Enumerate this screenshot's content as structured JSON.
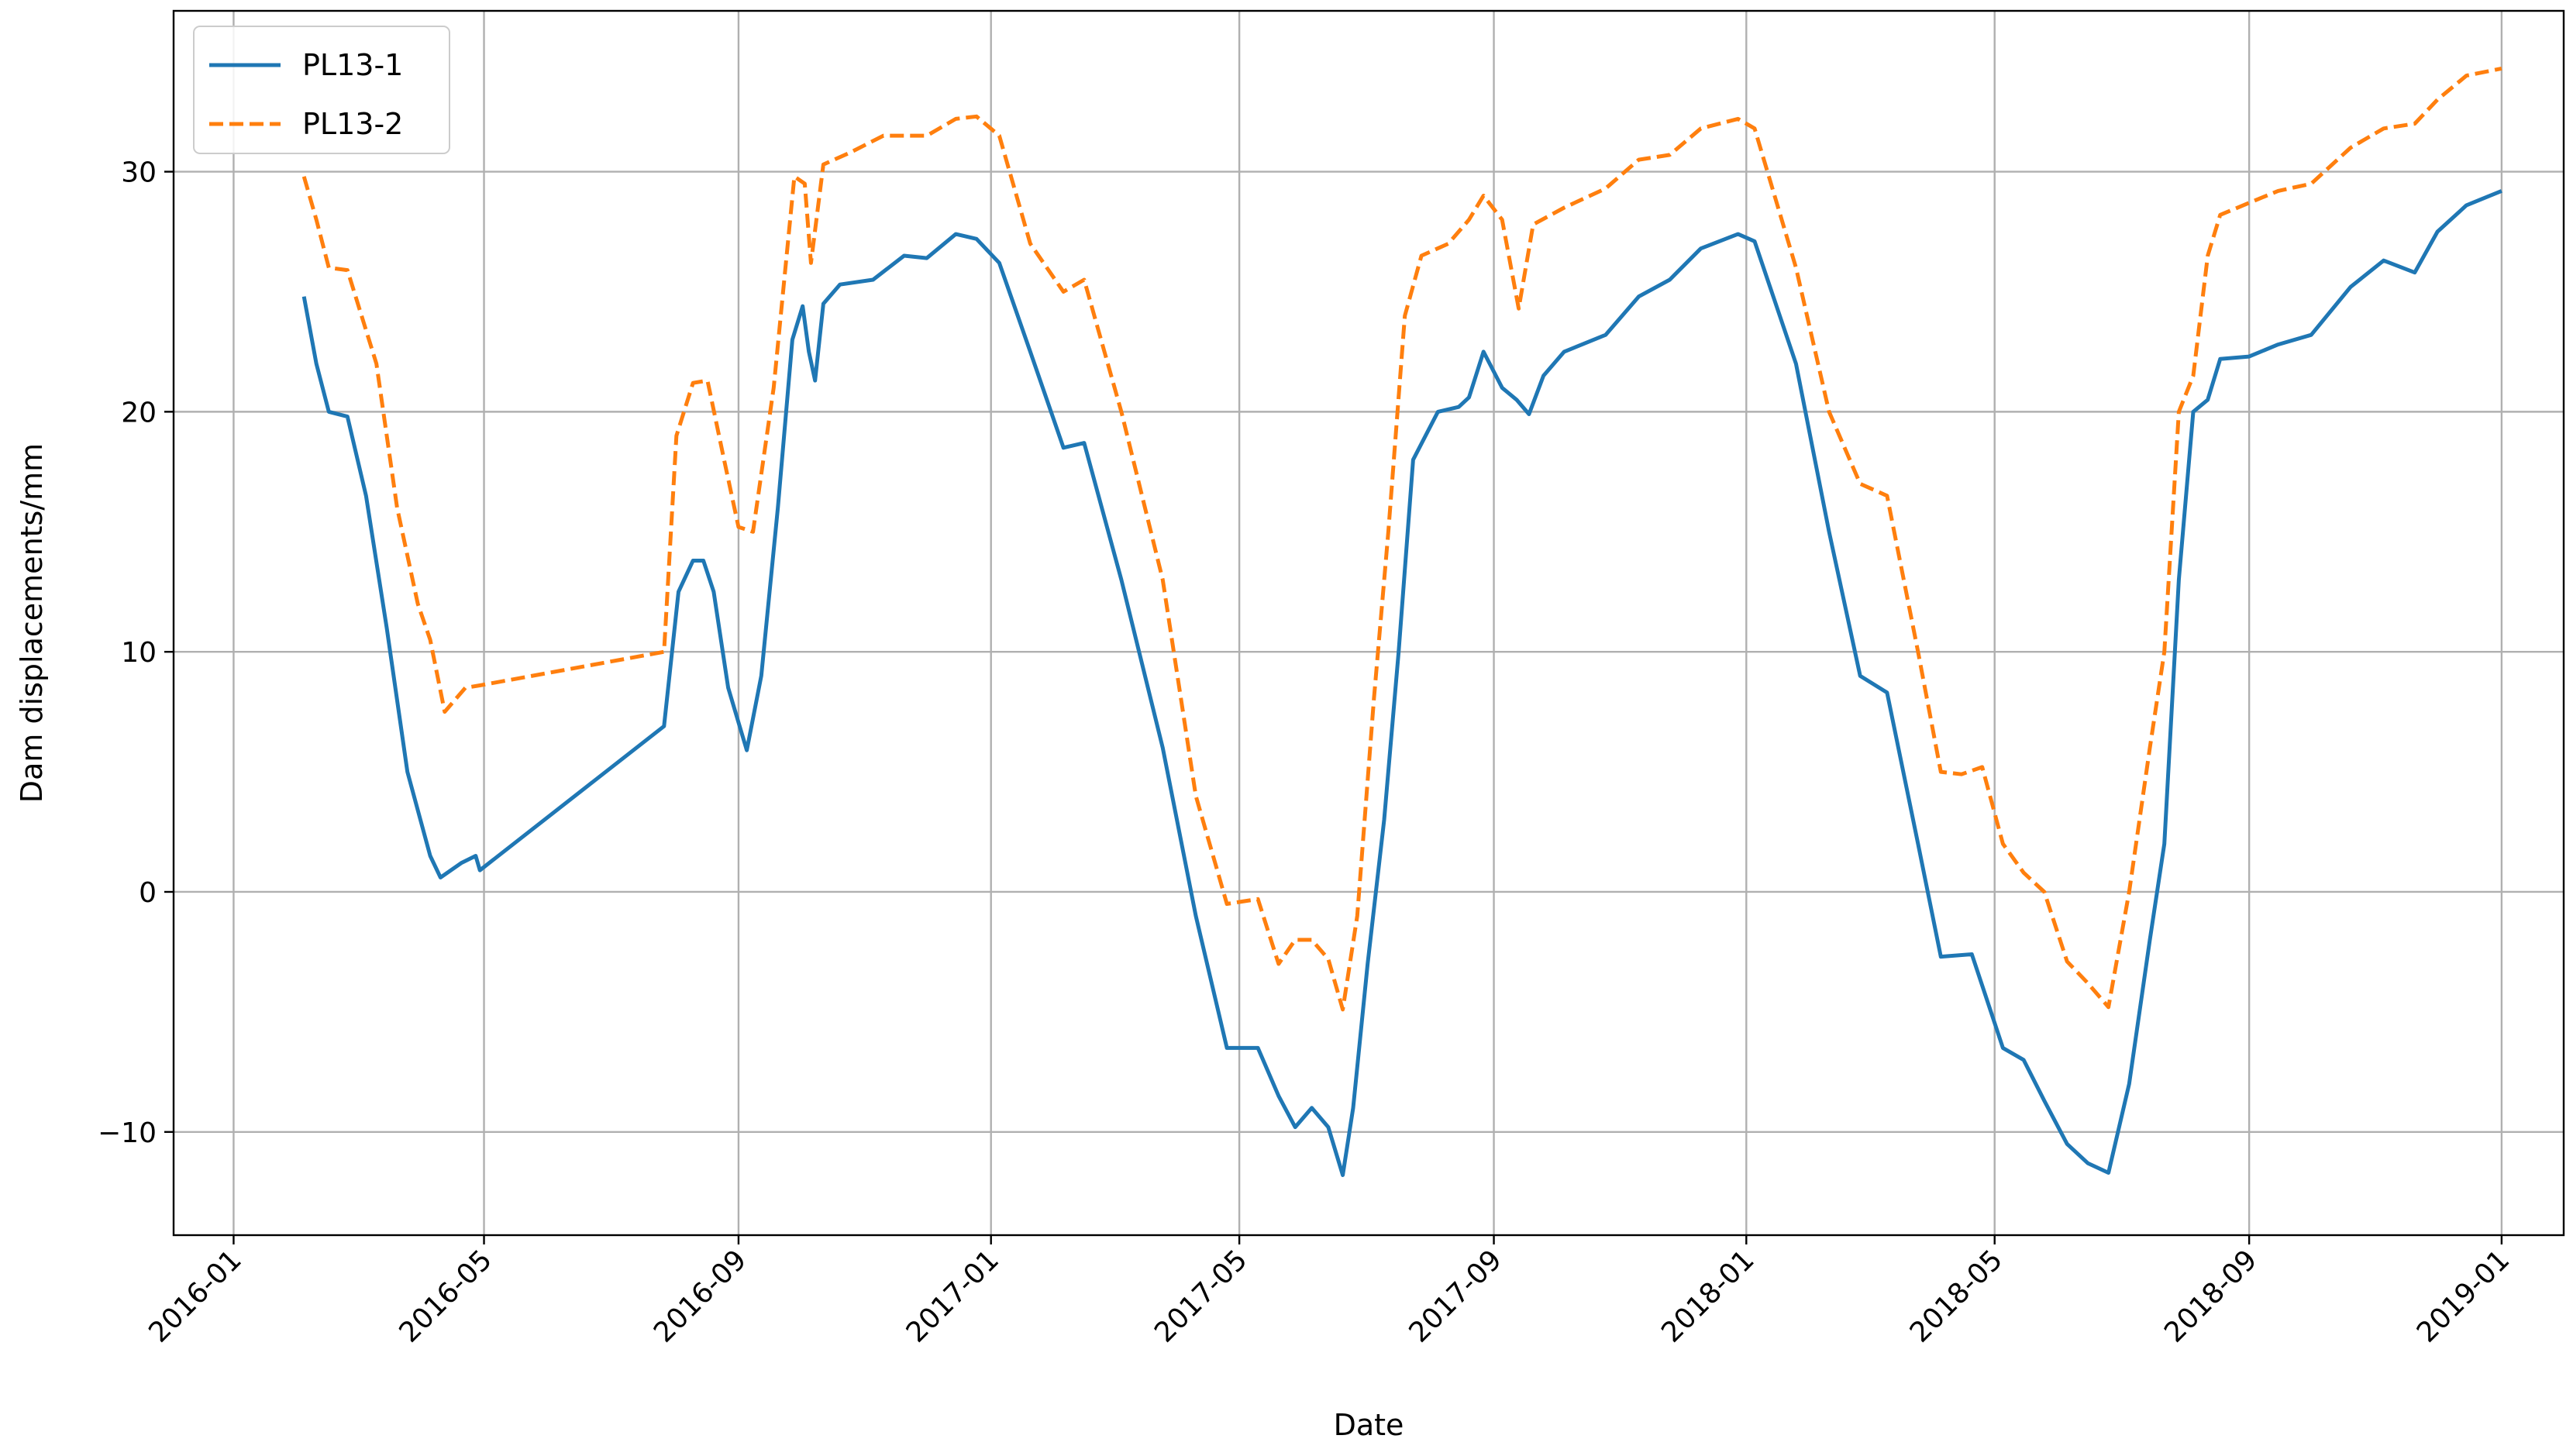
{
  "chart_data": {
    "type": "line",
    "title": "",
    "xlabel": "Date",
    "ylabel": "Dam displacements/mm",
    "x_ticks": [
      "2016-01",
      "2016-05",
      "2016-09",
      "2017-01",
      "2017-05",
      "2017-09",
      "2018-01",
      "2018-05",
      "2018-09",
      "2019-01"
    ],
    "y_ticks": [
      -10,
      0,
      10,
      20,
      30
    ],
    "xlim": [
      "2015-12-03",
      "2019-01-31"
    ],
    "ylim": [
      -14.3,
      36.7
    ],
    "grid": true,
    "legend_position": "top-left",
    "series": [
      {
        "name": "PL13-1",
        "color": "#1f77b4",
        "dash": "solid",
        "points": [
          [
            "2016-02-04",
            24.8
          ],
          [
            "2016-02-10",
            22
          ],
          [
            "2016-02-16",
            20
          ],
          [
            "2016-02-25",
            19.8
          ],
          [
            "2016-03-05",
            16.5
          ],
          [
            "2016-03-15",
            11
          ],
          [
            "2016-03-25",
            5
          ],
          [
            "2016-04-05",
            1.5
          ],
          [
            "2016-04-10",
            0.6
          ],
          [
            "2016-04-20",
            1.2
          ],
          [
            "2016-04-27",
            1.5
          ],
          [
            "2016-04-29",
            0.9
          ],
          [
            "2016-07-27",
            6.9
          ],
          [
            "2016-08-03",
            12.5
          ],
          [
            "2016-08-10",
            13.8
          ],
          [
            "2016-08-15",
            13.8
          ],
          [
            "2016-08-20",
            12.5
          ],
          [
            "2016-08-27",
            8.5
          ],
          [
            "2016-09-05",
            5.9
          ],
          [
            "2016-09-12",
            9
          ],
          [
            "2016-09-20",
            16
          ],
          [
            "2016-09-27",
            23
          ],
          [
            "2016-10-02",
            24.4
          ],
          [
            "2016-10-05",
            22.5
          ],
          [
            "2016-10-08",
            21.3
          ],
          [
            "2016-10-12",
            24.5
          ],
          [
            "2016-10-20",
            25.3
          ],
          [
            "2016-11-05",
            25.5
          ],
          [
            "2016-11-20",
            26.5
          ],
          [
            "2016-12-01",
            26.4
          ],
          [
            "2016-12-15",
            27.4
          ],
          [
            "2016-12-25",
            27.2
          ],
          [
            "2017-01-05",
            26.2
          ],
          [
            "2017-01-20",
            22.5
          ],
          [
            "2017-02-05",
            18.5
          ],
          [
            "2017-02-15",
            18.7
          ],
          [
            "2017-03-05",
            13
          ],
          [
            "2017-03-25",
            6
          ],
          [
            "2017-04-10",
            -1
          ],
          [
            "2017-04-25",
            -6.5
          ],
          [
            "2017-05-10",
            -6.5
          ],
          [
            "2017-05-20",
            -8.5
          ],
          [
            "2017-05-28",
            -9.8
          ],
          [
            "2017-06-05",
            -9
          ],
          [
            "2017-06-13",
            -9.8
          ],
          [
            "2017-06-20",
            -11.8
          ],
          [
            "2017-06-25",
            -9
          ],
          [
            "2017-07-02",
            -3
          ],
          [
            "2017-07-10",
            3
          ],
          [
            "2017-07-17",
            10
          ],
          [
            "2017-07-24",
            18
          ],
          [
            "2017-08-05",
            20
          ],
          [
            "2017-08-15",
            20.2
          ],
          [
            "2017-08-20",
            20.6
          ],
          [
            "2017-08-27",
            22.5
          ],
          [
            "2017-09-05",
            21
          ],
          [
            "2017-09-12",
            20.5
          ],
          [
            "2017-09-18",
            19.9
          ],
          [
            "2017-09-25",
            21.5
          ],
          [
            "2017-10-05",
            22.5
          ],
          [
            "2017-10-25",
            23.2
          ],
          [
            "2017-11-10",
            24.8
          ],
          [
            "2017-11-25",
            25.5
          ],
          [
            "2017-12-10",
            26.8
          ],
          [
            "2017-12-28",
            27.4
          ],
          [
            "2018-01-05",
            27.1
          ],
          [
            "2018-01-25",
            22
          ],
          [
            "2018-02-10",
            15
          ],
          [
            "2018-02-25",
            9
          ],
          [
            "2018-03-10",
            8.3
          ],
          [
            "2018-03-25",
            2
          ],
          [
            "2018-04-05",
            -2.7
          ],
          [
            "2018-04-20",
            -2.6
          ],
          [
            "2018-05-05",
            -6.5
          ],
          [
            "2018-05-15",
            -7
          ],
          [
            "2018-05-25",
            -8.7
          ],
          [
            "2018-06-05",
            -10.5
          ],
          [
            "2018-06-15",
            -11.3
          ],
          [
            "2018-06-25",
            -11.7
          ],
          [
            "2018-07-05",
            -8
          ],
          [
            "2018-07-15",
            -2
          ],
          [
            "2018-07-22",
            2
          ],
          [
            "2018-07-29",
            13
          ],
          [
            "2018-08-05",
            20
          ],
          [
            "2018-08-12",
            20.5
          ],
          [
            "2018-08-18",
            22.2
          ],
          [
            "2018-09-01",
            22.3
          ],
          [
            "2018-09-15",
            22.8
          ],
          [
            "2018-10-01",
            23.2
          ],
          [
            "2018-10-20",
            25.2
          ],
          [
            "2018-11-05",
            26.3
          ],
          [
            "2018-11-20",
            25.8
          ],
          [
            "2018-12-01",
            27.5
          ],
          [
            "2018-12-15",
            28.6
          ],
          [
            "2019-01-01",
            29.2
          ]
        ]
      },
      {
        "name": "PL13-2",
        "color": "#ff7f0e",
        "dash": "dashed",
        "points": [
          [
            "2016-02-04",
            29.8
          ],
          [
            "2016-02-10",
            28
          ],
          [
            "2016-02-16",
            26
          ],
          [
            "2016-02-25",
            25.9
          ],
          [
            "2016-03-10",
            22
          ],
          [
            "2016-03-20",
            16
          ],
          [
            "2016-03-30",
            12
          ],
          [
            "2016-04-05",
            10.5
          ],
          [
            "2016-04-12",
            7.5
          ],
          [
            "2016-04-22",
            8.5
          ],
          [
            "2016-04-29",
            8.6
          ],
          [
            "2016-07-27",
            10
          ],
          [
            "2016-08-02",
            19
          ],
          [
            "2016-08-10",
            21.2
          ],
          [
            "2016-08-17",
            21.3
          ],
          [
            "2016-08-25",
            18
          ],
          [
            "2016-09-01",
            15.2
          ],
          [
            "2016-09-08",
            15
          ],
          [
            "2016-09-18",
            21
          ],
          [
            "2016-09-28",
            29.8
          ],
          [
            "2016-10-03",
            29.5
          ],
          [
            "2016-10-06",
            26.2
          ],
          [
            "2016-10-12",
            30.3
          ],
          [
            "2016-10-25",
            30.8
          ],
          [
            "2016-11-10",
            31.5
          ],
          [
            "2016-12-01",
            31.5
          ],
          [
            "2016-12-15",
            32.2
          ],
          [
            "2016-12-25",
            32.3
          ],
          [
            "2017-01-05",
            31.5
          ],
          [
            "2017-01-20",
            27
          ],
          [
            "2017-02-05",
            25
          ],
          [
            "2017-02-15",
            25.5
          ],
          [
            "2017-03-05",
            20
          ],
          [
            "2017-03-25",
            13
          ],
          [
            "2017-04-10",
            4
          ],
          [
            "2017-04-25",
            -0.5
          ],
          [
            "2017-05-10",
            -0.3
          ],
          [
            "2017-05-20",
            -3
          ],
          [
            "2017-05-28",
            -2
          ],
          [
            "2017-06-05",
            -2
          ],
          [
            "2017-06-13",
            -2.8
          ],
          [
            "2017-06-20",
            -4.9
          ],
          [
            "2017-06-27",
            -1
          ],
          [
            "2017-07-05",
            8
          ],
          [
            "2017-07-12",
            15
          ],
          [
            "2017-07-20",
            24
          ],
          [
            "2017-07-28",
            26.5
          ],
          [
            "2017-08-10",
            27
          ],
          [
            "2017-08-20",
            28
          ],
          [
            "2017-08-27",
            29
          ],
          [
            "2017-09-05",
            28
          ],
          [
            "2017-09-13",
            24.3
          ],
          [
            "2017-09-20",
            27.8
          ],
          [
            "2017-10-05",
            28.5
          ],
          [
            "2017-10-25",
            29.3
          ],
          [
            "2017-11-10",
            30.5
          ],
          [
            "2017-11-25",
            30.7
          ],
          [
            "2017-12-10",
            31.8
          ],
          [
            "2017-12-28",
            32.2
          ],
          [
            "2018-01-05",
            31.8
          ],
          [
            "2018-01-25",
            26
          ],
          [
            "2018-02-10",
            20
          ],
          [
            "2018-02-25",
            17
          ],
          [
            "2018-03-10",
            16.5
          ],
          [
            "2018-03-25",
            10
          ],
          [
            "2018-04-05",
            5
          ],
          [
            "2018-04-15",
            4.9
          ],
          [
            "2018-04-25",
            5.2
          ],
          [
            "2018-05-05",
            2
          ],
          [
            "2018-05-15",
            0.8
          ],
          [
            "2018-05-25",
            0
          ],
          [
            "2018-06-05",
            -2.9
          ],
          [
            "2018-06-15",
            -3.8
          ],
          [
            "2018-06-25",
            -4.8
          ],
          [
            "2018-07-05",
            0
          ],
          [
            "2018-07-15",
            6
          ],
          [
            "2018-07-22",
            10
          ],
          [
            "2018-07-29",
            20
          ],
          [
            "2018-08-05",
            21.5
          ],
          [
            "2018-08-12",
            26.5
          ],
          [
            "2018-08-18",
            28.2
          ],
          [
            "2018-09-01",
            28.7
          ],
          [
            "2018-09-15",
            29.2
          ],
          [
            "2018-10-01",
            29.5
          ],
          [
            "2018-10-20",
            31
          ],
          [
            "2018-11-05",
            31.8
          ],
          [
            "2018-11-20",
            32
          ],
          [
            "2018-12-01",
            33
          ],
          [
            "2018-12-15",
            34
          ],
          [
            "2019-01-01",
            34.3
          ]
        ]
      }
    ]
  }
}
